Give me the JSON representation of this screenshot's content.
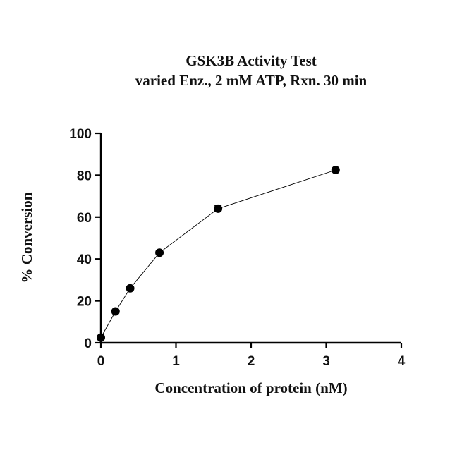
{
  "chart_data": {
    "type": "scatter",
    "title": "GSK3B Activity Test",
    "subtitle": "varied Enz., 2 mM ATP, Rxn. 30 min",
    "xlabel": "Concentration of protein (nM)",
    "ylabel": "% Conversion",
    "xlim": [
      0,
      4
    ],
    "ylim": [
      0,
      100
    ],
    "x_ticks": [
      0,
      1,
      2,
      3,
      4
    ],
    "y_ticks": [
      0,
      20,
      40,
      60,
      80,
      100
    ],
    "x_tick_labels": [
      "0",
      "1",
      "2",
      "3",
      "4"
    ],
    "y_tick_labels": [
      "0",
      "20",
      "40",
      "60",
      "80",
      "100"
    ],
    "grid": false,
    "legend": "none",
    "marker": "filled-circle",
    "connected": true,
    "series": [
      {
        "name": "GSK3B",
        "x": [
          0,
          0.195,
          0.39,
          0.78,
          1.56,
          3.125
        ],
        "y": [
          2.5,
          15,
          26,
          43,
          64,
          82.5
        ],
        "error": [
          0.5,
          0.6,
          0.6,
          0.6,
          1.5,
          0.6
        ]
      }
    ]
  }
}
